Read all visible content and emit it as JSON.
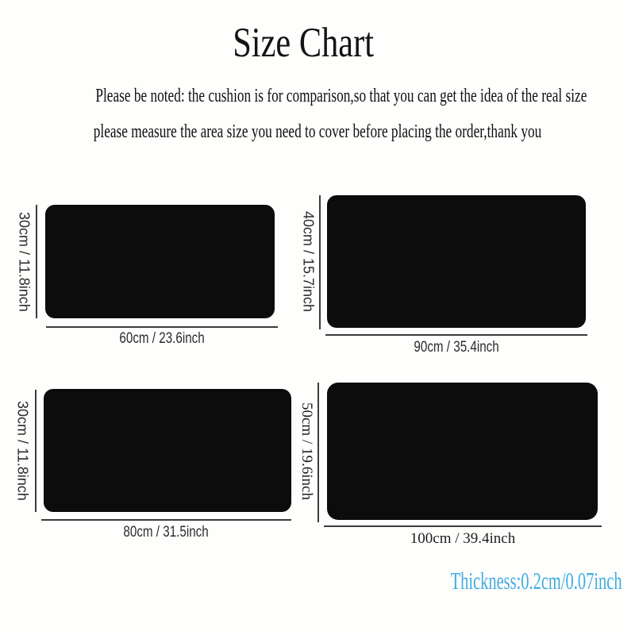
{
  "page": {
    "title": "Size Chart"
  },
  "note": {
    "line1": "Please be noted: the cushion is for comparison,so that you can get the idea of the real size",
    "line2": "please measure the area size you need to cover before placing the order,thank you"
  },
  "sizes": [
    {
      "height_label": "30cm / 11.8inch",
      "width_label": "60cm / 23.6inch",
      "width_cm": 60,
      "height_cm": 30,
      "width_inch": 23.6,
      "height_inch": 11.8
    },
    {
      "height_label": "40cm / 15.7inch",
      "width_label": "90cm / 35.4inch",
      "width_cm": 90,
      "height_cm": 40,
      "width_inch": 35.4,
      "height_inch": 15.7
    },
    {
      "height_label": "30cm / 11.8inch",
      "width_label": "80cm / 31.5inch",
      "width_cm": 80,
      "height_cm": 30,
      "width_inch": 31.5,
      "height_inch": 11.8
    },
    {
      "height_label": "50cm / 19.6inch",
      "width_label": "100cm / 39.4inch",
      "width_cm": 100,
      "height_cm": 50,
      "width_inch": 39.4,
      "height_inch": 19.6
    }
  ],
  "thickness": {
    "label": "Thickness:0.2cm/0.07inch"
  },
  "colors": {
    "swatch_black": "#0c0c0c",
    "measure_line": "#3b3b3b",
    "thickness_blue": "#41ace1",
    "background": "#fefefc"
  }
}
